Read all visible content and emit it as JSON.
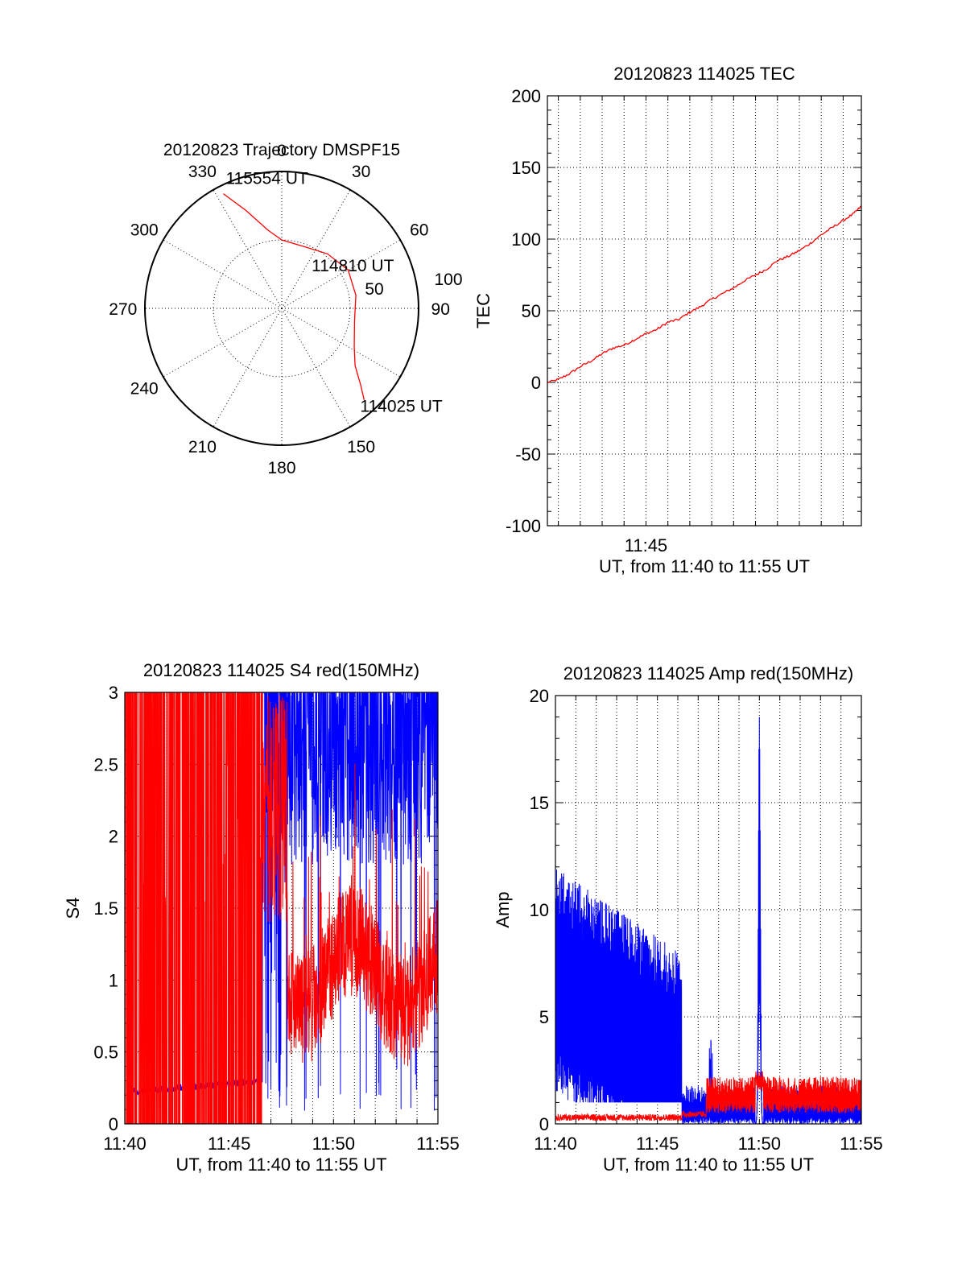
{
  "colors": {
    "red": "#ff0000",
    "blue": "#0000ff",
    "grid": "#000000"
  },
  "chart_data": [
    {
      "type": "polar",
      "title": "20120823 Trajectory DMSPF15",
      "azimuth_labels": [
        "0",
        "30",
        "60",
        "90",
        "150",
        "180",
        "210",
        "240",
        "270",
        "300",
        "330"
      ],
      "azimuth_values": [
        0,
        30,
        60,
        90,
        150,
        180,
        210,
        240,
        270,
        300,
        330
      ],
      "ring_labels": [
        "50",
        "100"
      ],
      "ring_values": [
        50,
        100
      ],
      "series": [
        {
          "color": "red",
          "points": [
            {
              "az": 333,
              "r": 94
            },
            {
              "az": 340,
              "r": 76
            },
            {
              "az": 350,
              "r": 58
            },
            {
              "az": 0,
              "r": 50
            },
            {
              "az": 20,
              "r": 48
            },
            {
              "az": 40,
              "r": 52
            },
            {
              "az": 60,
              "r": 56
            },
            {
              "az": 80,
              "r": 55
            },
            {
              "az": 100,
              "r": 54
            },
            {
              "az": 118,
              "r": 60
            },
            {
              "az": 128,
              "r": 68
            },
            {
              "az": 134,
              "r": 80
            },
            {
              "az": 138,
              "r": 90
            }
          ]
        }
      ],
      "annotations": [
        {
          "text": "115554 UT",
          "az": 333,
          "r": 94
        },
        {
          "text": "114810 UT",
          "az": 80,
          "r": 55
        },
        {
          "text": "114025 UT",
          "az": 138,
          "r": 90
        }
      ]
    },
    {
      "type": "line",
      "title": "20120823 114025 TEC",
      "xlabel": "UT, from 11:40 to 11:55 UT",
      "ylabel": "TEC",
      "xlim": [
        0.5,
        14.83
      ],
      "ylim": [
        -100,
        200
      ],
      "yticks": [
        -100,
        -50,
        0,
        50,
        100,
        150,
        200
      ],
      "yticklabels": [
        "-100",
        "-50",
        "0",
        "50",
        "100",
        "150",
        "200"
      ],
      "xticks": [
        5
      ],
      "xticklabels": [
        "11:45"
      ],
      "x_grid": [
        1,
        2,
        3,
        4,
        5,
        6,
        7,
        8,
        9,
        10,
        11,
        12,
        13,
        14
      ],
      "grid": true,
      "series": [
        {
          "color": "red",
          "x": [
            0.5,
            1,
            1.5,
            2,
            2.5,
            3,
            3.5,
            4,
            4.5,
            5,
            5.5,
            6,
            6.5,
            7,
            7.5,
            8,
            8.5,
            9,
            9.5,
            10,
            10.5,
            11,
            11.5,
            12,
            12.5,
            13,
            13.5,
            14,
            14.5,
            14.83
          ],
          "y": [
            0,
            2,
            6,
            11,
            15,
            20,
            24,
            26,
            30,
            34,
            37,
            42,
            44,
            49,
            53,
            58,
            62,
            66,
            71,
            75,
            79,
            85,
            88,
            92,
            97,
            103,
            108,
            113,
            118,
            123
          ]
        }
      ]
    },
    {
      "type": "line",
      "title": "20120823 114025 S4 red(150MHz)",
      "xlabel": "UT, from 11:40 to 11:55 UT",
      "ylabel": "S4",
      "xlim": [
        0,
        15
      ],
      "ylim": [
        0,
        3
      ],
      "yticks": [
        0,
        0.5,
        1,
        1.5,
        2,
        2.5,
        3
      ],
      "yticklabels": [
        "0",
        "0.5",
        "1",
        "1.5",
        "2",
        "2.5",
        "3"
      ],
      "xticks": [
        0,
        5,
        10,
        15
      ],
      "xticklabels": [
        "11:40",
        "11:45",
        "11:50",
        "11:55"
      ],
      "x_grid": [
        1,
        2,
        3,
        4,
        5,
        6,
        7,
        8,
        9,
        10,
        11,
        12,
        13,
        14
      ],
      "grid": true,
      "series": [
        {
          "color": "red",
          "x": [],
          "y": []
        },
        {
          "color": "blue",
          "x": [],
          "y": []
        }
      ]
    },
    {
      "type": "line",
      "title": "20120823 114025 Amp red(150MHz)",
      "xlabel": "UT, from 11:40 to 11:55 UT",
      "ylabel": "Amp",
      "xlim": [
        0,
        15
      ],
      "ylim": [
        0,
        20
      ],
      "yticks": [
        0,
        5,
        10,
        15,
        20
      ],
      "yticklabels": [
        "0",
        "5",
        "10",
        "15",
        "20"
      ],
      "xticks": [
        0,
        5,
        10,
        15
      ],
      "xticklabels": [
        "11:40",
        "11:45",
        "11:50",
        "11:55"
      ],
      "x_grid": [
        1,
        2,
        3,
        4,
        5,
        6,
        7,
        8,
        9,
        10,
        11,
        12,
        13,
        14
      ],
      "grid": true,
      "series": [
        {
          "color": "red",
          "x": [],
          "y": []
        },
        {
          "color": "blue",
          "x": [],
          "y": []
        }
      ]
    }
  ]
}
